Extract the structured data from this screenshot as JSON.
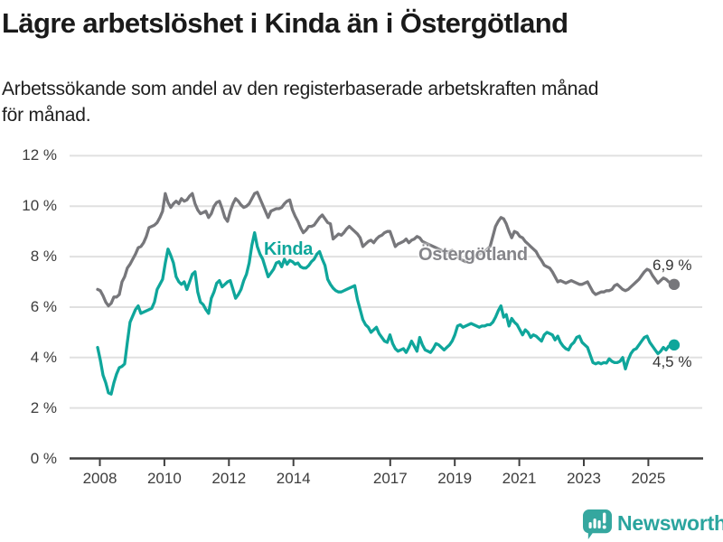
{
  "header": {
    "title": "Lägre arbetslöshet i Kinda än i Östergötland"
  },
  "subtitle": {
    "lines": [
      "Arbetssökande som andel av den registerbaserade arbetskraften månad",
      "för månad."
    ]
  },
  "branding": {
    "name": "Newsworthy",
    "logo_icon": "newsworthy-speech-bubble-bar-chart-icon",
    "color": "#2aa49e",
    "icon_color": "#35a79f"
  },
  "chart_data": {
    "type": "line",
    "title": "Lägre arbetslöshet i Kinda än i Östergötland",
    "xlabel": "",
    "ylabel": "",
    "x_unit": "month",
    "x_start": "2008-01",
    "x_end": "2025-10",
    "ylim": [
      0,
      12
    ],
    "grid": true,
    "legend_position": "inline-labels",
    "axis_color": "#3f3f3f",
    "grid_color": "#e0e0e0",
    "y_ticks": [
      {
        "value": 12,
        "label": "12 %"
      },
      {
        "value": 10,
        "label": "10 %"
      },
      {
        "value": 8,
        "label": "8 %"
      },
      {
        "value": 6,
        "label": "6 %"
      },
      {
        "value": 4,
        "label": "4 %"
      },
      {
        "value": 2,
        "label": "2 %"
      },
      {
        "value": 0,
        "label": "0 %"
      }
    ],
    "x_ticks": [
      {
        "year": 2008,
        "label": "2008"
      },
      {
        "year": 2010,
        "label": "2010"
      },
      {
        "year": 2012,
        "label": "2012"
      },
      {
        "year": 2014,
        "label": "2014"
      },
      {
        "year": 2017,
        "label": "2017"
      },
      {
        "year": 2019,
        "label": "2019"
      },
      {
        "year": 2021,
        "label": "2021"
      },
      {
        "year": 2023,
        "label": "2023"
      },
      {
        "year": 2025,
        "label": "2025"
      }
    ],
    "series": [
      {
        "name": "Östergötland",
        "color": "#77777b",
        "label_color": "#85858a",
        "end_label": "6,9 %",
        "last_value": 6.9,
        "values": [
          6.7,
          6.65,
          6.45,
          6.2,
          6.05,
          6.15,
          6.4,
          6.4,
          6.5,
          7.0,
          7.2,
          7.55,
          7.7,
          7.9,
          8.1,
          8.35,
          8.4,
          8.55,
          8.8,
          9.15,
          9.2,
          9.25,
          9.35,
          9.55,
          9.8,
          10.5,
          10.15,
          9.95,
          10.1,
          10.2,
          10.1,
          10.3,
          10.2,
          10.25,
          10.4,
          10.5,
          10.1,
          9.85,
          9.7,
          9.75,
          9.8,
          9.55,
          9.7,
          10.0,
          10.15,
          10.2,
          9.9,
          9.55,
          9.4,
          9.8,
          10.1,
          10.3,
          10.2,
          10.05,
          9.95,
          10.0,
          10.1,
          10.3,
          10.5,
          10.55,
          10.3,
          10.05,
          9.8,
          9.55,
          9.8,
          9.85,
          9.9,
          9.9,
          9.95,
          10.1,
          10.2,
          10.25,
          9.85,
          9.6,
          9.4,
          9.15,
          8.95,
          9.05,
          9.2,
          9.2,
          9.25,
          9.4,
          9.55,
          9.65,
          9.5,
          9.35,
          9.3,
          8.7,
          8.8,
          8.9,
          8.85,
          8.95,
          9.1,
          9.2,
          9.1,
          9.0,
          8.9,
          8.75,
          8.4,
          8.5,
          8.6,
          8.65,
          8.55,
          8.7,
          8.8,
          8.85,
          8.95,
          9.0,
          9.0,
          8.7,
          8.4,
          8.5,
          8.55,
          8.6,
          8.7,
          8.55,
          8.65,
          8.7,
          8.8,
          8.75,
          8.6,
          8.55,
          8.5,
          8.45,
          8.4,
          8.35,
          8.3,
          8.25,
          8.2,
          8.15,
          8.2,
          8.25,
          8.1,
          8.0,
          7.9,
          7.85,
          7.8,
          7.85,
          7.95,
          8.0,
          8.05,
          8.1,
          8.15,
          8.2,
          8.3,
          8.4,
          8.8,
          9.2,
          9.4,
          9.55,
          9.5,
          9.3,
          9.0,
          8.75,
          9.0,
          8.95,
          8.8,
          8.75,
          8.6,
          8.5,
          8.4,
          8.3,
          8.2,
          8.0,
          7.85,
          7.66,
          7.6,
          7.55,
          7.4,
          7.2,
          7.0,
          7.05,
          7.0,
          6.95,
          7.0,
          7.05,
          7.0,
          6.95,
          6.9,
          6.9,
          6.95,
          7.0,
          6.8,
          6.6,
          6.5,
          6.55,
          6.6,
          6.6,
          6.65,
          6.65,
          6.7,
          6.85,
          6.9,
          6.8,
          6.7,
          6.65,
          6.7,
          6.8,
          6.9,
          7.0,
          7.1,
          7.25,
          7.4,
          7.5,
          7.45,
          7.25,
          7.1,
          6.95,
          7.05,
          7.15,
          7.1,
          7.0,
          6.95,
          6.9
        ]
      },
      {
        "name": "Kinda",
        "color": "#0fa69b",
        "label_color": "#0fa69b",
        "end_label": "4,5 %",
        "last_value": 4.5,
        "values": [
          4.4,
          3.9,
          3.3,
          3.0,
          2.6,
          2.55,
          3.0,
          3.35,
          3.6,
          3.65,
          3.75,
          4.6,
          5.4,
          5.65,
          5.9,
          6.05,
          5.75,
          5.8,
          5.85,
          5.9,
          5.95,
          6.2,
          6.7,
          6.9,
          7.1,
          7.75,
          8.3,
          8.05,
          7.75,
          7.2,
          7.0,
          6.9,
          7.0,
          6.7,
          7.0,
          7.3,
          7.4,
          6.6,
          6.2,
          6.1,
          5.9,
          5.75,
          6.35,
          6.6,
          6.95,
          7.05,
          6.8,
          6.9,
          7.0,
          7.05,
          6.7,
          6.35,
          6.5,
          6.7,
          7.05,
          7.3,
          7.75,
          8.45,
          8.95,
          8.4,
          8.1,
          7.9,
          7.55,
          7.2,
          7.35,
          7.5,
          7.75,
          7.8,
          7.6,
          7.9,
          7.7,
          7.85,
          7.8,
          7.7,
          7.75,
          7.6,
          7.55,
          7.55,
          7.65,
          7.8,
          7.9,
          8.1,
          8.2,
          7.9,
          7.65,
          7.1,
          6.9,
          6.75,
          6.65,
          6.6,
          6.6,
          6.65,
          6.7,
          6.75,
          6.8,
          6.85,
          6.3,
          5.9,
          5.5,
          5.3,
          5.2,
          5.0,
          5.1,
          5.2,
          4.95,
          4.8,
          4.65,
          4.6,
          4.9,
          4.55,
          4.35,
          4.25,
          4.3,
          4.35,
          4.2,
          4.4,
          4.65,
          4.45,
          4.25,
          4.8,
          4.5,
          4.3,
          4.25,
          4.2,
          4.35,
          4.55,
          4.5,
          4.4,
          4.3,
          4.4,
          4.5,
          4.65,
          4.9,
          5.25,
          5.3,
          5.2,
          5.25,
          5.3,
          5.35,
          5.3,
          5.25,
          5.2,
          5.25,
          5.25,
          5.3,
          5.3,
          5.4,
          5.6,
          5.85,
          6.05,
          5.6,
          5.7,
          5.25,
          5.55,
          5.4,
          5.3,
          5.1,
          4.9,
          5.1,
          5.0,
          4.8,
          4.9,
          4.85,
          4.75,
          4.65,
          4.9,
          5.0,
          4.95,
          4.9,
          4.7,
          4.85,
          4.6,
          4.45,
          4.35,
          4.3,
          4.5,
          4.6,
          4.8,
          4.85,
          4.6,
          4.5,
          4.4,
          4.1,
          3.8,
          3.75,
          3.8,
          3.75,
          3.8,
          3.78,
          3.95,
          3.85,
          3.8,
          3.8,
          3.85,
          4.0,
          3.55,
          3.9,
          4.15,
          4.3,
          4.35,
          4.5,
          4.65,
          4.8,
          4.85,
          4.6,
          4.45,
          4.3,
          4.15,
          4.25,
          4.4,
          4.3,
          4.45,
          4.5,
          4.5
        ]
      }
    ]
  }
}
